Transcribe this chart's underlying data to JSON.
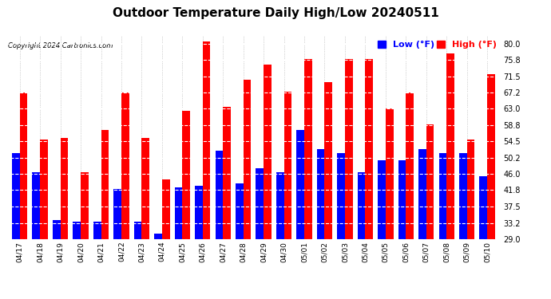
{
  "title": "Outdoor Temperature Daily High/Low 20240511",
  "copyright": "Copyright 2024 Cartronics.com",
  "dates": [
    "04/17",
    "04/18",
    "04/19",
    "04/20",
    "04/21",
    "04/22",
    "04/23",
    "04/24",
    "04/25",
    "04/26",
    "04/27",
    "04/28",
    "04/29",
    "04/30",
    "05/01",
    "05/02",
    "05/03",
    "05/04",
    "05/05",
    "05/06",
    "05/07",
    "05/08",
    "05/09",
    "05/10"
  ],
  "highs": [
    67.2,
    55.0,
    55.5,
    46.5,
    57.5,
    67.2,
    55.5,
    44.5,
    62.5,
    80.5,
    63.5,
    70.5,
    74.5,
    67.5,
    76.0,
    70.0,
    76.0,
    76.0,
    63.0,
    67.2,
    59.0,
    77.5,
    55.0,
    72.0
  ],
  "lows": [
    51.5,
    46.5,
    34.0,
    33.5,
    33.5,
    42.0,
    33.5,
    30.5,
    42.5,
    43.0,
    52.0,
    43.5,
    47.5,
    46.5,
    57.5,
    52.5,
    51.5,
    46.5,
    49.5,
    49.5,
    52.5,
    51.5,
    51.5,
    45.5
  ],
  "high_color": "#ff0000",
  "low_color": "#0000ff",
  "bg_color": "#ffffff",
  "grid_color": "#aaaaaa",
  "title_fontsize": 11,
  "ylabel_right_ticks": [
    29.0,
    33.2,
    37.5,
    41.8,
    46.0,
    50.2,
    54.5,
    58.8,
    63.0,
    67.2,
    71.5,
    75.8,
    80.0
  ],
  "ylim": [
    29.0,
    82.0
  ],
  "bar_width": 0.38
}
